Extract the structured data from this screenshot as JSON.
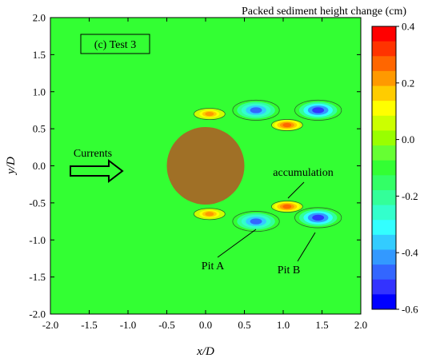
{
  "chart_data": {
    "type": "heatmap",
    "panel_label": "(c) Test 3",
    "xlabel": "x/D",
    "ylabel": "y/D",
    "xlim": [
      -2.0,
      2.0
    ],
    "ylim": [
      -2.0,
      2.0
    ],
    "x_ticks": [
      "-2.0",
      "-1.5",
      "-1.0",
      "-0.5",
      "0.0",
      "0.5",
      "1.0",
      "1.5",
      "2.0"
    ],
    "y_ticks": [
      "2.0",
      "1.5",
      "1.0",
      "0.5",
      "0.0",
      "-0.5",
      "-1.0",
      "-1.5",
      "-2.0"
    ],
    "colorbar": {
      "title": "Packed sediment height change (cm)",
      "ticks": [
        "0.4",
        "0.2",
        "0.0",
        "-0.2",
        "-0.4",
        "-0.6"
      ],
      "range": [
        -0.6,
        0.4
      ],
      "colors": [
        "#ff0000",
        "#ff3300",
        "#ff6600",
        "#ff9900",
        "#ffcc00",
        "#ffff00",
        "#ccff00",
        "#99ff00",
        "#66ff33",
        "#33ff33",
        "#33ff66",
        "#33ff99",
        "#33ffcc",
        "#33ffff",
        "#33ccff",
        "#3399ff",
        "#3366ff",
        "#3333ff",
        "#0000ff"
      ]
    },
    "cylinder": {
      "x": 0.0,
      "y": 0.0,
      "diameter": 1.0,
      "color": "#a07026"
    },
    "background_value": 0.0,
    "features": [
      {
        "name": "scour pit upper",
        "x": 0.65,
        "y": 0.75,
        "value": -0.45
      },
      {
        "name": "scour pit lower (Pit A)",
        "x": 0.65,
        "y": -0.75,
        "value": -0.45
      },
      {
        "name": "scour pit upper rear",
        "x": 1.45,
        "y": 0.75,
        "value": -0.5
      },
      {
        "name": "scour pit lower rear (Pit B)",
        "x": 1.45,
        "y": -0.7,
        "value": -0.5
      },
      {
        "name": "accumulation upper",
        "x": 1.05,
        "y": 0.55,
        "value": 0.25
      },
      {
        "name": "accumulation lower",
        "x": 1.05,
        "y": -0.55,
        "value": 0.25
      },
      {
        "name": "side deposit upper",
        "x": 0.05,
        "y": 0.7,
        "value": 0.2
      },
      {
        "name": "side deposit lower",
        "x": 0.05,
        "y": -0.65,
        "value": 0.2
      }
    ],
    "annotations": {
      "currents": "Currents",
      "accumulation": "accumulation",
      "pit_a": "Pit A",
      "pit_b": "Pit B"
    }
  }
}
